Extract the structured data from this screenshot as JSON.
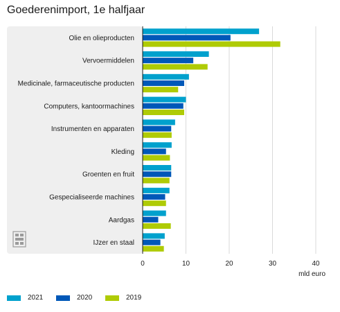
{
  "chart_data": {
    "type": "bar",
    "orientation": "horizontal",
    "title": "Goederenimport, 1e halfjaar",
    "xlabel": "mld euro",
    "xlim": [
      0,
      40
    ],
    "xticks": [
      0,
      10,
      20,
      30,
      40
    ],
    "grid": true,
    "legend_position": "bottom",
    "categories": [
      "Olie en olieproducten",
      "Vervoermiddelen",
      "Medicinale, farmaceutische producten",
      "Computers, kantoormachines",
      "Instrumenten en apparaten",
      "Kleding",
      "Groenten en fruit",
      "Gespecialiseerde machines",
      "Aardgas",
      "IJzer en staal"
    ],
    "series": [
      {
        "name": "2021",
        "color": "#00a1cd",
        "values": [
          26.9,
          15.3,
          10.7,
          10.0,
          7.5,
          6.7,
          6.6,
          6.2,
          5.4,
          5.1
        ]
      },
      {
        "name": "2020",
        "color": "#0058b8",
        "values": [
          20.3,
          11.7,
          9.6,
          9.4,
          6.6,
          5.4,
          6.6,
          5.2,
          3.6,
          4.1
        ]
      },
      {
        "name": "2019",
        "color": "#afcb05",
        "values": [
          31.8,
          15.0,
          8.2,
          9.6,
          6.7,
          6.3,
          6.2,
          5.4,
          6.5,
          4.9
        ]
      }
    ]
  }
}
